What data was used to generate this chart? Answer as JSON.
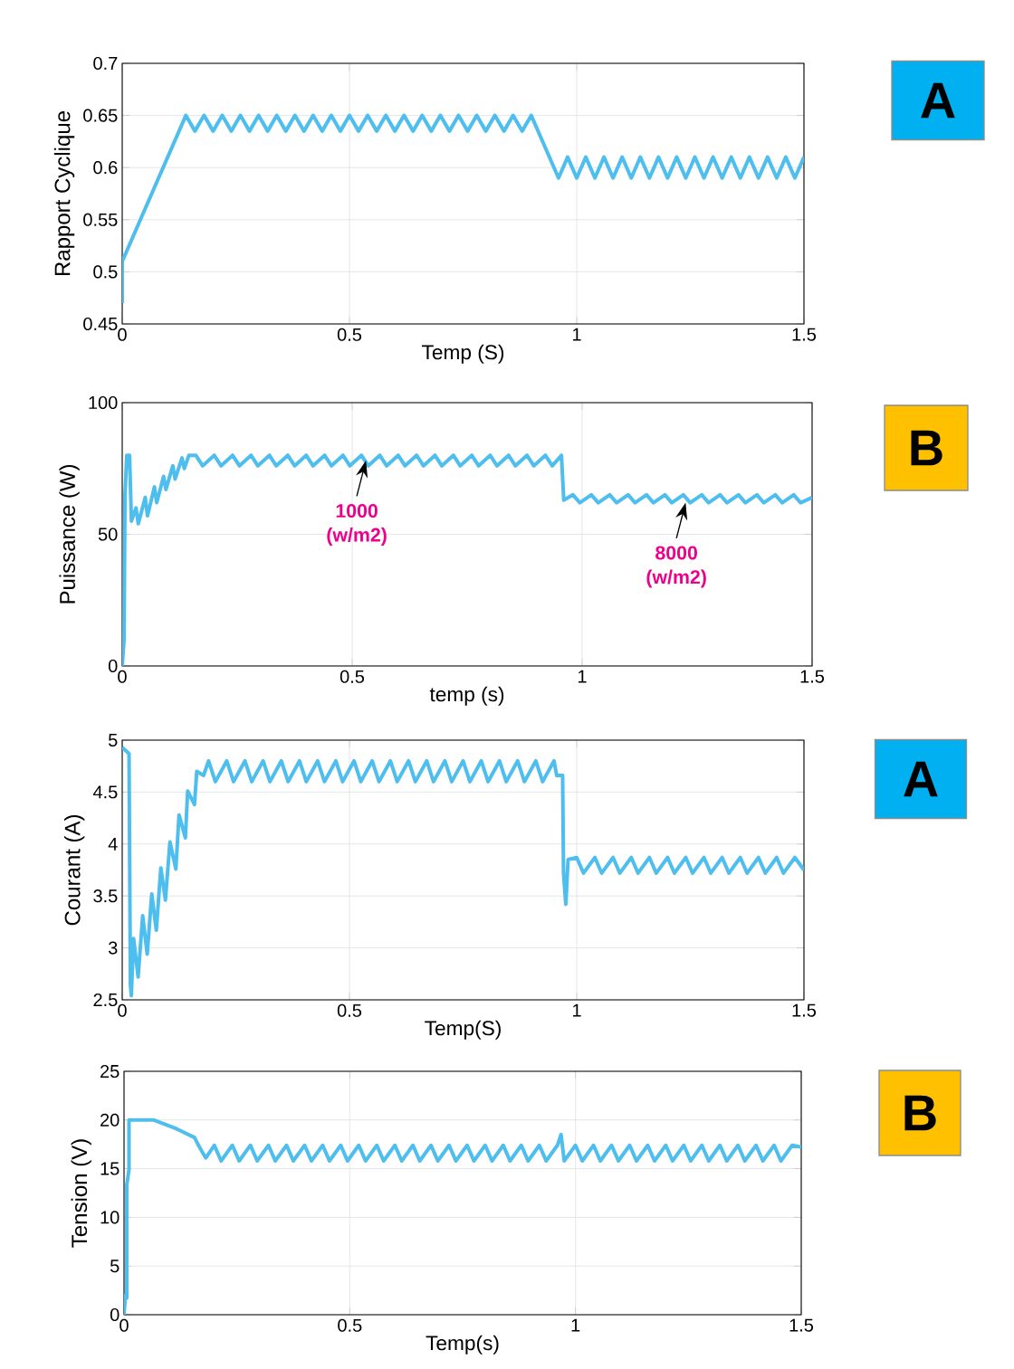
{
  "chart_data": [
    {
      "type": "line",
      "xlabel": "Temp (S)",
      "ylabel": "Rapport Cyclique",
      "color": "#4dbeee",
      "grid": true,
      "xlim": [
        0,
        1.5
      ],
      "ylim": [
        0.45,
        0.7
      ],
      "xticks": [
        0,
        0.5,
        1,
        1.5
      ],
      "yticks": [
        0.45,
        0.5,
        0.55,
        0.6,
        0.65,
        0.7
      ],
      "x": [
        0,
        0,
        0.14,
        0.16,
        0.18,
        0.2,
        0.22,
        0.24,
        0.26,
        0.28,
        0.3,
        0.32,
        0.34,
        0.36,
        0.38,
        0.4,
        0.42,
        0.44,
        0.46,
        0.48,
        0.5,
        0.52,
        0.54,
        0.56,
        0.58,
        0.6,
        0.62,
        0.64,
        0.66,
        0.68,
        0.7,
        0.72,
        0.74,
        0.76,
        0.78,
        0.8,
        0.82,
        0.84,
        0.86,
        0.88,
        0.9,
        0.96,
        0.98,
        1,
        1.02,
        1.04,
        1.06,
        1.08,
        1.1,
        1.12,
        1.14,
        1.16,
        1.18,
        1.2,
        1.22,
        1.24,
        1.26,
        1.28,
        1.3,
        1.32,
        1.34,
        1.36,
        1.38,
        1.4,
        1.42,
        1.44,
        1.46,
        1.48,
        1.5
      ],
      "values": [
        0.47,
        0.51,
        0.65,
        0.635,
        0.65,
        0.635,
        0.65,
        0.635,
        0.65,
        0.635,
        0.65,
        0.635,
        0.65,
        0.635,
        0.65,
        0.635,
        0.65,
        0.635,
        0.65,
        0.635,
        0.65,
        0.635,
        0.65,
        0.635,
        0.65,
        0.635,
        0.65,
        0.635,
        0.65,
        0.635,
        0.65,
        0.635,
        0.65,
        0.635,
        0.65,
        0.635,
        0.65,
        0.635,
        0.65,
        0.635,
        0.65,
        0.59,
        0.61,
        0.59,
        0.61,
        0.59,
        0.61,
        0.59,
        0.61,
        0.59,
        0.61,
        0.59,
        0.61,
        0.59,
        0.61,
        0.59,
        0.61,
        0.59,
        0.61,
        0.59,
        0.61,
        0.59,
        0.61,
        0.59,
        0.61,
        0.59,
        0.61,
        0.59,
        0.61
      ],
      "annotations": [
        "A"
      ]
    },
    {
      "type": "line",
      "xlabel": "temp (s)",
      "ylabel": "Puissance (W)",
      "color": "#4dbeee",
      "grid": true,
      "xlim": [
        0,
        1.5
      ],
      "ylim": [
        0,
        100
      ],
      "xticks": [
        0,
        0.5,
        1,
        1.5
      ],
      "yticks": [
        0,
        50,
        100
      ],
      "x": [
        0,
        0.004,
        0.006,
        0.01,
        0.016,
        0.02,
        0.03,
        0.035,
        0.05,
        0.055,
        0.07,
        0.075,
        0.09,
        0.095,
        0.11,
        0.115,
        0.13,
        0.135,
        0.145,
        0.16,
        0.175,
        0.2,
        0.215,
        0.24,
        0.255,
        0.28,
        0.295,
        0.32,
        0.335,
        0.36,
        0.375,
        0.4,
        0.415,
        0.44,
        0.455,
        0.48,
        0.495,
        0.52,
        0.535,
        0.56,
        0.575,
        0.6,
        0.615,
        0.64,
        0.655,
        0.68,
        0.695,
        0.72,
        0.735,
        0.76,
        0.775,
        0.8,
        0.815,
        0.84,
        0.855,
        0.88,
        0.895,
        0.92,
        0.935,
        0.955,
        0.96,
        0.98,
        0.995,
        1.02,
        1.035,
        1.06,
        1.075,
        1.1,
        1.115,
        1.14,
        1.155,
        1.18,
        1.195,
        1.22,
        1.235,
        1.26,
        1.275,
        1.3,
        1.315,
        1.34,
        1.355,
        1.38,
        1.395,
        1.42,
        1.435,
        1.46,
        1.475,
        1.5
      ],
      "values": [
        0,
        10,
        65,
        80,
        80,
        55,
        60,
        54,
        64,
        57,
        68,
        62,
        72,
        67,
        76,
        71,
        79,
        75,
        80,
        80,
        76,
        80,
        76,
        80,
        76,
        80,
        76,
        80,
        76,
        80,
        76,
        80,
        76,
        80,
        76,
        80,
        76,
        80,
        76,
        80,
        76,
        80,
        76,
        80,
        76,
        80,
        76,
        80,
        76,
        80,
        76,
        80,
        76,
        80,
        76,
        80,
        76,
        80,
        76,
        80,
        63,
        65,
        62,
        65,
        62,
        65,
        62,
        65,
        62,
        65,
        62,
        65,
        62,
        65,
        62,
        65,
        62,
        65,
        62,
        65,
        62,
        65,
        62,
        65,
        62,
        65,
        62,
        64
      ],
      "annotations": [
        "B",
        {
          "text": "1000 (w/m2)",
          "x": 0.53,
          "y": 78
        },
        {
          "text": "8000 (w/m2)",
          "x": 1.225,
          "y": 62
        }
      ]
    },
    {
      "type": "line",
      "xlabel": "Temp(S)",
      "ylabel": "Courant (A)",
      "color": "#4dbeee",
      "grid": true,
      "xlim": [
        0,
        1.5
      ],
      "ylim": [
        2.5,
        5
      ],
      "xticks": [
        0,
        0.5,
        1,
        1.5
      ],
      "yticks": [
        2.5,
        3,
        3.5,
        4,
        4.5,
        5
      ],
      "x": [
        0,
        0.015,
        0.018,
        0.02,
        0.025,
        0.035,
        0.045,
        0.055,
        0.065,
        0.075,
        0.085,
        0.095,
        0.105,
        0.118,
        0.125,
        0.139,
        0.144,
        0.159,
        0.164,
        0.179,
        0.19,
        0.205,
        0.23,
        0.245,
        0.27,
        0.285,
        0.31,
        0.325,
        0.35,
        0.365,
        0.39,
        0.405,
        0.43,
        0.445,
        0.47,
        0.485,
        0.51,
        0.525,
        0.55,
        0.565,
        0.59,
        0.605,
        0.63,
        0.645,
        0.67,
        0.685,
        0.71,
        0.725,
        0.75,
        0.765,
        0.79,
        0.805,
        0.83,
        0.845,
        0.87,
        0.885,
        0.91,
        0.925,
        0.95,
        0.956,
        0.969,
        0.971,
        0.976,
        0.981,
        1,
        1.015,
        1.04,
        1.055,
        1.08,
        1.095,
        1.12,
        1.135,
        1.16,
        1.175,
        1.2,
        1.215,
        1.24,
        1.255,
        1.28,
        1.295,
        1.32,
        1.335,
        1.36,
        1.375,
        1.4,
        1.415,
        1.44,
        1.455,
        1.48,
        1.5
      ],
      "values": [
        4.93,
        4.87,
        2.65,
        2.54,
        3.09,
        2.72,
        3.31,
        2.94,
        3.52,
        3.17,
        3.77,
        3.46,
        4.02,
        3.76,
        4.28,
        4.06,
        4.51,
        4.38,
        4.7,
        4.66,
        4.8,
        4.6,
        4.8,
        4.6,
        4.8,
        4.6,
        4.8,
        4.6,
        4.8,
        4.6,
        4.8,
        4.6,
        4.8,
        4.6,
        4.8,
        4.6,
        4.8,
        4.6,
        4.8,
        4.6,
        4.8,
        4.6,
        4.8,
        4.6,
        4.8,
        4.6,
        4.8,
        4.6,
        4.8,
        4.6,
        4.8,
        4.6,
        4.8,
        4.6,
        4.8,
        4.6,
        4.8,
        4.6,
        4.8,
        4.66,
        4.66,
        3.72,
        3.42,
        3.85,
        3.87,
        3.72,
        3.87,
        3.72,
        3.87,
        3.72,
        3.87,
        3.72,
        3.87,
        3.72,
        3.87,
        3.72,
        3.87,
        3.72,
        3.87,
        3.72,
        3.87,
        3.72,
        3.87,
        3.72,
        3.87,
        3.72,
        3.87,
        3.72,
        3.87,
        3.75
      ],
      "annotations": [
        "A"
      ]
    },
    {
      "type": "line",
      "xlabel": "Temp(s)",
      "ylabel": "Tension (V)",
      "color": "#4dbeee",
      "grid": true,
      "xlim": [
        0,
        1.5
      ],
      "ylim": [
        0,
        25
      ],
      "xticks": [
        0,
        0.5,
        1,
        1.5
      ],
      "yticks": [
        0,
        5,
        10,
        15,
        20,
        25
      ],
      "x": [
        0,
        0.003,
        0.006,
        0.006,
        0.011,
        0.011,
        0.066,
        0.116,
        0.156,
        0.166,
        0.181,
        0.2,
        0.215,
        0.24,
        0.255,
        0.28,
        0.295,
        0.32,
        0.335,
        0.36,
        0.375,
        0.4,
        0.415,
        0.44,
        0.455,
        0.48,
        0.495,
        0.52,
        0.535,
        0.56,
        0.575,
        0.6,
        0.615,
        0.64,
        0.655,
        0.68,
        0.695,
        0.72,
        0.735,
        0.76,
        0.775,
        0.8,
        0.815,
        0.84,
        0.855,
        0.88,
        0.895,
        0.92,
        0.935,
        0.96,
        0.968,
        0.975,
        1,
        1.015,
        1.04,
        1.055,
        1.08,
        1.095,
        1.12,
        1.135,
        1.16,
        1.175,
        1.2,
        1.215,
        1.24,
        1.255,
        1.28,
        1.295,
        1.32,
        1.335,
        1.36,
        1.375,
        1.4,
        1.415,
        1.44,
        1.455,
        1.48,
        1.5
      ],
      "values": [
        0,
        2,
        1.7,
        13.3,
        14.9,
        20,
        20,
        19.1,
        18.2,
        17.3,
        16.1,
        17.4,
        15.8,
        17.4,
        15.8,
        17.4,
        15.8,
        17.4,
        15.8,
        17.4,
        15.8,
        17.4,
        15.8,
        17.4,
        15.8,
        17.4,
        15.8,
        17.4,
        15.8,
        17.4,
        15.8,
        17.4,
        15.8,
        17.4,
        15.8,
        17.4,
        15.8,
        17.4,
        15.8,
        17.4,
        15.8,
        17.4,
        15.8,
        17.4,
        15.8,
        17.4,
        15.8,
        17.4,
        15.8,
        17.4,
        18.5,
        15.8,
        17.4,
        15.8,
        17.4,
        15.8,
        17.4,
        15.8,
        17.4,
        15.8,
        17.4,
        15.8,
        17.4,
        15.8,
        17.4,
        15.8,
        17.4,
        15.8,
        17.4,
        15.8,
        17.4,
        15.8,
        17.4,
        15.8,
        17.4,
        15.8,
        17.4,
        17.2
      ],
      "annotations": [
        "B"
      ]
    }
  ]
}
